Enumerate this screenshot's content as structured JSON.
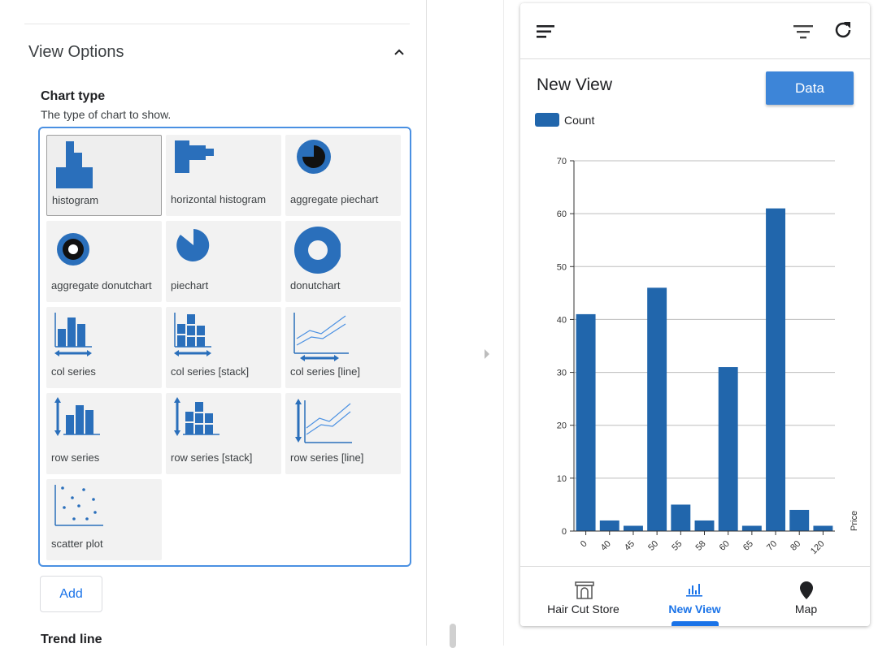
{
  "view_options": {
    "title": "View Options",
    "chart_type_label": "Chart type",
    "chart_type_help": "The type of chart to show.",
    "tiles": [
      {
        "label": "histogram",
        "icon": "histogram-icon"
      },
      {
        "label": "horizontal histogram",
        "icon": "horizontal-histogram-icon"
      },
      {
        "label": "aggregate piechart",
        "icon": "aggregate-piechart-icon"
      },
      {
        "label": "aggregate donutchart",
        "icon": "aggregate-donutchart-icon"
      },
      {
        "label": "piechart",
        "icon": "piechart-icon"
      },
      {
        "label": "donutchart",
        "icon": "donutchart-icon"
      },
      {
        "label": "col series",
        "icon": "col-series-icon"
      },
      {
        "label": "col series [stack]",
        "icon": "col-series-stack-icon"
      },
      {
        "label": "col series [line]",
        "icon": "col-series-line-icon"
      },
      {
        "label": "row series",
        "icon": "row-series-icon"
      },
      {
        "label": "row series [stack]",
        "icon": "row-series-stack-icon"
      },
      {
        "label": "row series [line]",
        "icon": "row-series-line-icon"
      },
      {
        "label": "scatter plot",
        "icon": "scatter-plot-icon"
      }
    ],
    "selected": "histogram",
    "add_label": "Add",
    "trend_label": "Trend line"
  },
  "phone": {
    "view_title": "New View",
    "data_button": "Data",
    "nav": [
      {
        "label": "Hair Cut Store",
        "icon": "store-icon"
      },
      {
        "label": "New View",
        "icon": "chart-icon"
      },
      {
        "label": "Map",
        "icon": "map-pin-icon"
      }
    ],
    "active_nav": "New View"
  },
  "colors": {
    "accent": "#1a73e8",
    "bar": "#2166ac",
    "button": "#3d85d8",
    "selection_border": "#4a90e2"
  },
  "chart_data": {
    "type": "bar",
    "categories": [
      "0",
      "40",
      "45",
      "50",
      "55",
      "58",
      "60",
      "65",
      "70",
      "80",
      "120"
    ],
    "series": [
      {
        "name": "Count",
        "values": [
          41,
          2,
          1,
          46,
          5,
          2,
          31,
          1,
          61,
          4,
          1
        ]
      }
    ],
    "xlabel": "Price",
    "ylabel": "",
    "ylim": [
      0,
      70
    ],
    "yticks": [
      0,
      10,
      20,
      30,
      40,
      50,
      60,
      70
    ],
    "grid": true,
    "legend": "top-left"
  }
}
